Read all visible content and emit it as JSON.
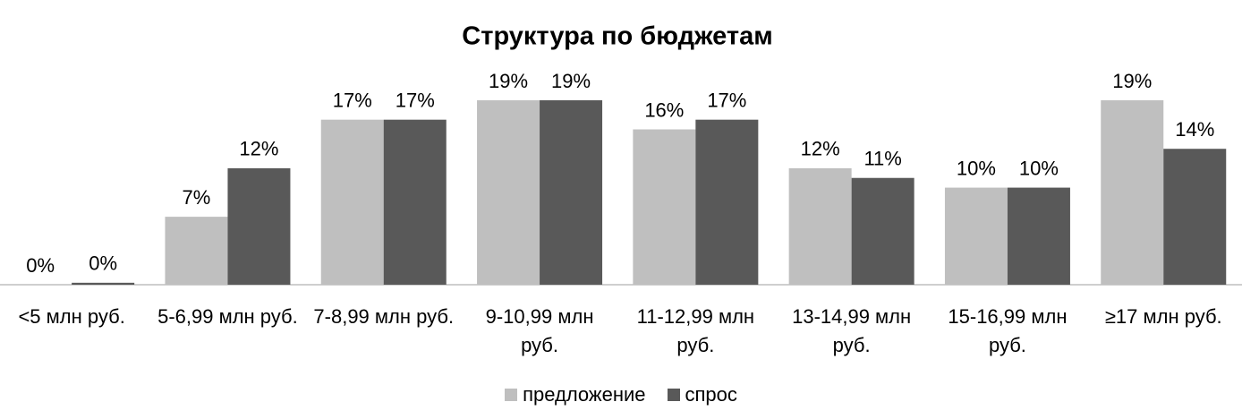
{
  "chart_data": {
    "type": "bar",
    "title": "Структура по бюджетам",
    "categories": [
      "<5 млн руб.",
      "5-6,99 млн руб.",
      "7-8,99 млн руб.",
      "9-10,99 млн руб.",
      "11-12,99 млн руб.",
      "13-14,99 млн руб.",
      "15-16,99 млн руб.",
      "≥17 млн руб."
    ],
    "series": [
      {
        "name": "предложение",
        "color": "#bfbfbf",
        "values": [
          0,
          7,
          17,
          19,
          16,
          12,
          10,
          19
        ],
        "value_labels": [
          "0%",
          "7%",
          "17%",
          "19%",
          "16%",
          "12%",
          "10%",
          "19%"
        ]
      },
      {
        "name": "спрос",
        "color": "#595959",
        "values": [
          0.2,
          12,
          17,
          19,
          17,
          11,
          10,
          14
        ],
        "value_labels": [
          "0%",
          "12%",
          "17%",
          "19%",
          "17%",
          "11%",
          "10%",
          "14%"
        ]
      }
    ],
    "legend": "bottom"
  }
}
